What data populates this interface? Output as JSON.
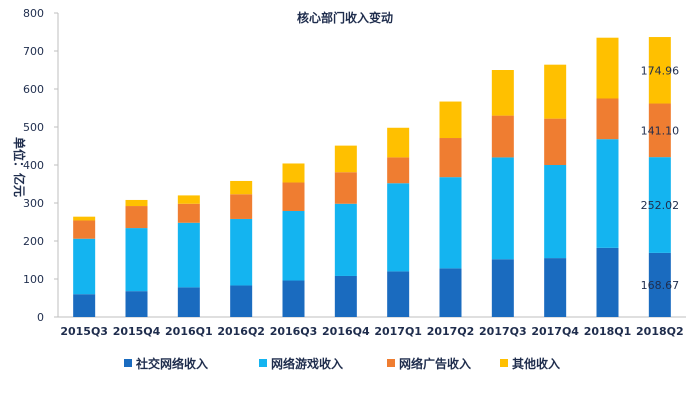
{
  "chart_data": {
    "type": "bar",
    "stacked": true,
    "title": "核心部门收入变动",
    "ylabel": "单位：亿元",
    "xlabel": "",
    "ylim": [
      0,
      800
    ],
    "yticks": [
      0,
      100,
      200,
      300,
      400,
      500,
      600,
      700,
      800
    ],
    "grid": false,
    "legend_position": "bottom",
    "categories": [
      "2015Q3",
      "2015Q4",
      "2016Q1",
      "2016Q2",
      "2016Q3",
      "2016Q4",
      "2017Q1",
      "2017Q2",
      "2017Q3",
      "2017Q4",
      "2018Q1",
      "2018Q2"
    ],
    "series": [
      {
        "name": "社交网络收入",
        "color": "#1a6bbf",
        "values": [
          60,
          68,
          78,
          83,
          96,
          108,
          120,
          128,
          152,
          155,
          182,
          168.67
        ]
      },
      {
        "name": "网络游戏收入",
        "color": "#14b4f0",
        "values": [
          146,
          166,
          170,
          175,
          183,
          190,
          232,
          240,
          268,
          245,
          286,
          252.02
        ]
      },
      {
        "name": "网络广告收入",
        "color": "#ef7d31",
        "values": [
          48,
          58,
          50,
          65,
          75,
          83,
          68,
          103,
          110,
          122,
          107,
          141.1
        ]
      },
      {
        "name": "其他收入",
        "color": "#ffc000",
        "values": [
          10,
          16,
          22,
          35,
          50,
          70,
          78,
          96,
          120,
          142,
          160,
          174.96
        ]
      }
    ],
    "data_labels": [
      {
        "category": "2018Q2",
        "series": "社交网络收入",
        "text": "168.67"
      },
      {
        "category": "2018Q2",
        "series": "网络游戏收入",
        "text": "252.02"
      },
      {
        "category": "2018Q2",
        "series": "网络广告收入",
        "text": "141.10"
      },
      {
        "category": "2018Q2",
        "series": "其他收入",
        "text": "174.96"
      }
    ]
  }
}
